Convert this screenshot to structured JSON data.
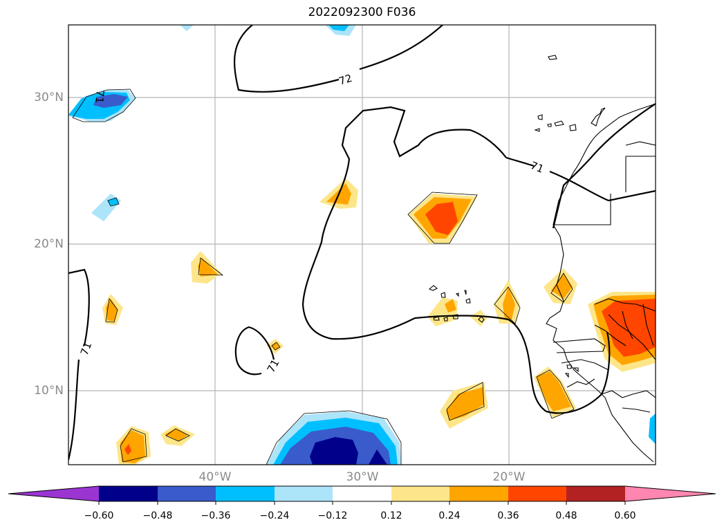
{
  "title": "2022092300 F036",
  "latitude_labels": [
    "30°N",
    "20°N",
    "10°N"
  ],
  "longitude_labels": [
    "40°W",
    "30°W",
    "20°W"
  ],
  "contour_labels": [
    "72",
    "71",
    "71",
    "71",
    "71"
  ],
  "colorbar": {
    "tick_labels": [
      "−0.60",
      "−0.48",
      "−0.36",
      "−0.24",
      "−0.12",
      "0.12",
      "0.24",
      "0.36",
      "0.48",
      "0.60"
    ],
    "colors": [
      "#9a35d2",
      "#00008b",
      "#3a5bcb",
      "#00bfff",
      "#ace4fa",
      "#ffffff",
      "#fde68a",
      "#ffa500",
      "#ff4500",
      "#b22222",
      "#ff86b0"
    ],
    "extend": "both"
  }
}
